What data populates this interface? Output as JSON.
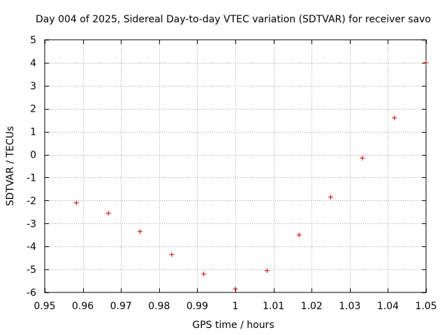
{
  "chart_data": {
    "type": "scatter",
    "title": "Day 004 of 2025, Sidereal Day-to-day VTEC variation (SDTVAR) for receiver savo",
    "xlabel": "GPS time / hours",
    "ylabel": "SDTVAR / TECUs",
    "xlim": [
      0.95,
      1.05
    ],
    "ylim": [
      -6,
      5
    ],
    "xticks": [
      0.95,
      0.96,
      0.97,
      0.98,
      0.99,
      1.0,
      1.01,
      1.02,
      1.03,
      1.04,
      1.05
    ],
    "xtick_labels": [
      "0.95",
      "0.96",
      "0.97",
      "0.98",
      "0.99",
      "1",
      "1.01",
      "1.02",
      "1.03",
      "1.04",
      "1.05"
    ],
    "yticks": [
      -6,
      -5,
      -4,
      -3,
      -2,
      -1,
      0,
      1,
      2,
      3,
      4,
      5
    ],
    "ytick_labels": [
      "-6",
      "-5",
      "-4",
      "-3",
      "-2",
      "-1",
      "0",
      "1",
      "2",
      "3",
      "4",
      "5"
    ],
    "grid": true,
    "marker": "plus",
    "marker_color": "#cc0000",
    "series": [
      {
        "name": "SDTVAR",
        "x": [
          0.9583,
          0.9667,
          0.975,
          0.9833,
          0.9917,
          1.0,
          1.0083,
          1.0167,
          1.025,
          1.0333,
          1.0417,
          1.05
        ],
        "y": [
          -2.1,
          -2.55,
          -3.35,
          -4.35,
          -5.2,
          -5.85,
          -5.05,
          -3.5,
          -1.85,
          -0.15,
          1.6,
          4.0
        ]
      }
    ]
  }
}
